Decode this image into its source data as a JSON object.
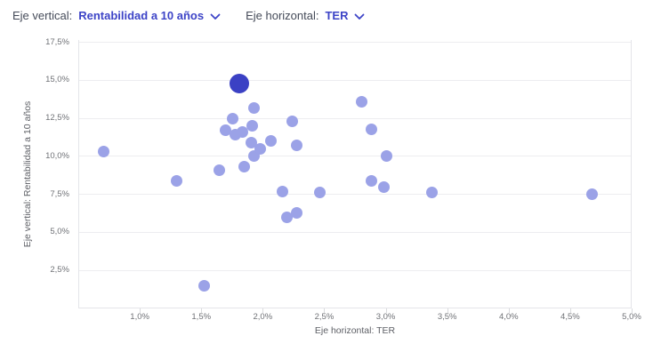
{
  "controls": {
    "vertical": {
      "label": "Eje vertical:",
      "value": "Rentabilidad a 10 años"
    },
    "horizontal": {
      "label": "Eje horizontal:",
      "value": "TER"
    }
  },
  "colors": {
    "accent": "#3d44c7",
    "point_default": "#9ba2e7",
    "point_highlight": "#3b41c4",
    "gridline": "#ededf0",
    "tick_text": "#6f7176",
    "axis_title_text": "#5e6066"
  },
  "chart_data": {
    "type": "scatter",
    "grid": "horizontal",
    "legend": "none",
    "x_axis": {
      "title": "Eje horizontal: TER",
      "min": 0.5,
      "max": 5.0,
      "ticks": [
        1.0,
        1.5,
        2.0,
        2.5,
        3.0,
        3.5,
        4.0,
        4.5,
        5.0
      ],
      "tick_labels": [
        "1,0%",
        "1,5%",
        "2,0%",
        "2,5%",
        "3,0%",
        "3,5%",
        "4,0%",
        "4,5%",
        "5,0%"
      ],
      "unit": "%"
    },
    "y_axis": {
      "title": "Eje vertical: Rentabilidad a 10 años",
      "min": 0,
      "max": 17.65,
      "ticks": [
        2.5,
        5.0,
        7.5,
        10.0,
        12.5,
        15.0,
        17.5
      ],
      "tick_labels": [
        "2,5%",
        "5,0%",
        "7,5%",
        "10,0%",
        "12,5%",
        "15,0%",
        "17,5%"
      ],
      "unit": "%"
    },
    "series": [
      {
        "name": "default",
        "color": "#9ba2e7",
        "radius": 6.5,
        "points": [
          [
            0.7,
            10.3
          ],
          [
            1.29,
            8.4
          ],
          [
            1.52,
            1.5
          ],
          [
            1.64,
            9.1
          ],
          [
            1.69,
            11.7
          ],
          [
            1.75,
            12.5
          ],
          [
            1.77,
            11.4
          ],
          [
            1.83,
            11.6
          ],
          [
            1.84,
            9.3
          ],
          [
            1.9,
            10.9
          ],
          [
            1.91,
            12.0
          ],
          [
            1.92,
            13.2
          ],
          [
            1.92,
            10.0
          ],
          [
            1.97,
            10.5
          ],
          [
            2.06,
            11.0
          ],
          [
            2.15,
            7.7
          ],
          [
            2.19,
            6.0
          ],
          [
            2.23,
            12.3
          ],
          [
            2.27,
            10.7
          ],
          [
            2.27,
            6.3
          ],
          [
            2.46,
            7.6
          ],
          [
            2.8,
            13.6
          ],
          [
            2.88,
            11.8
          ],
          [
            2.88,
            8.4
          ],
          [
            2.98,
            8.0
          ],
          [
            3.0,
            10.0
          ],
          [
            3.37,
            7.6
          ],
          [
            4.67,
            7.5
          ]
        ]
      },
      {
        "name": "highlighted",
        "color": "#3b41c4",
        "radius": 11,
        "points": [
          [
            1.8,
            14.8
          ]
        ]
      }
    ]
  }
}
